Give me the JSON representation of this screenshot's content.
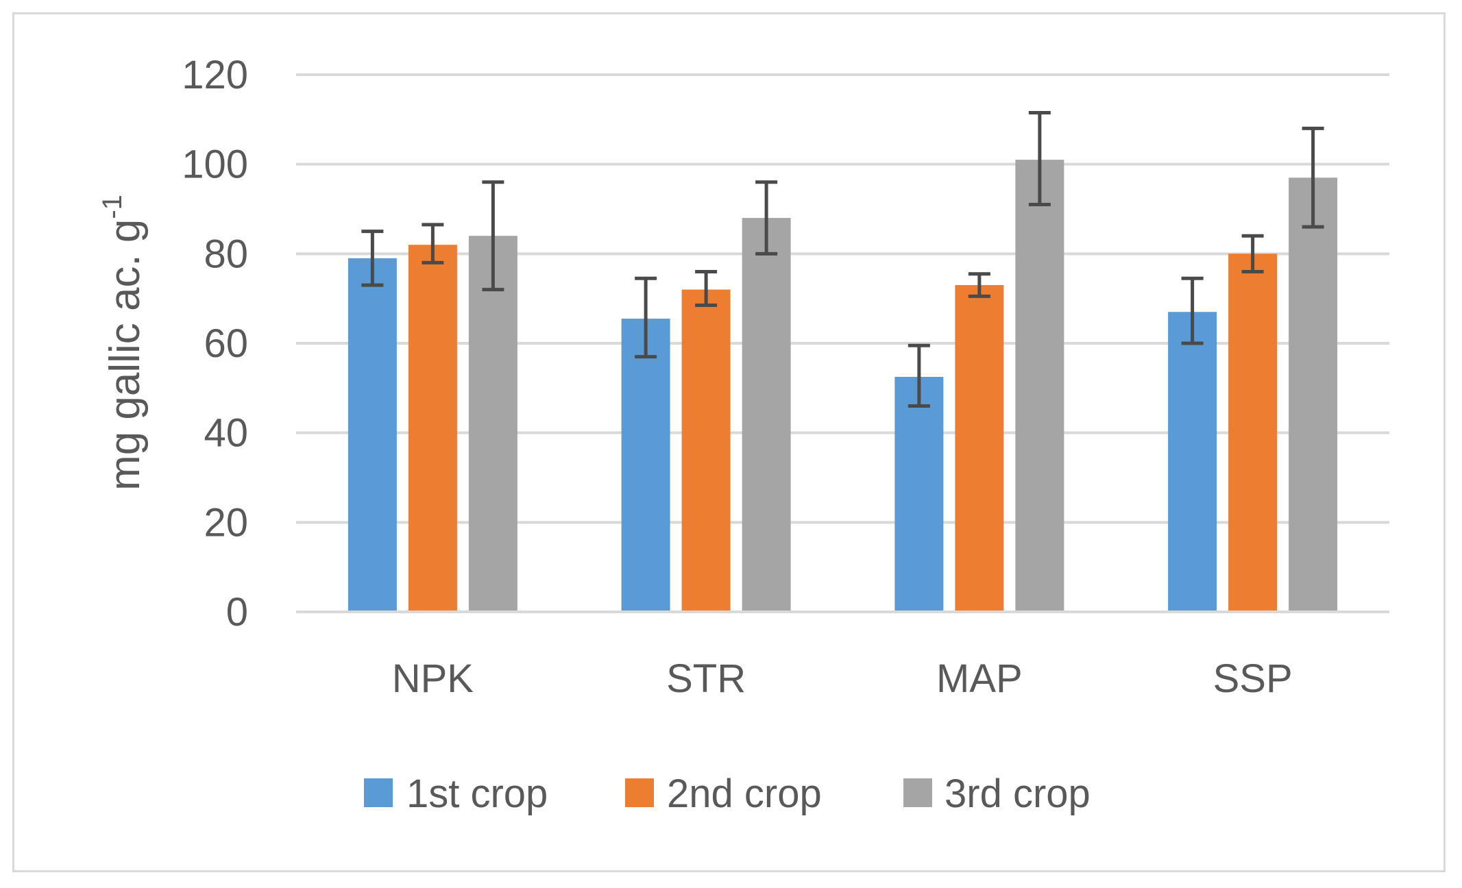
{
  "chart_data": {
    "type": "bar",
    "title": "",
    "xlabel": "",
    "ylabel": "mg gallic ac. g",
    "ylabel_superscript": "-1",
    "ylim": [
      0,
      120
    ],
    "yticks": [
      0,
      20,
      40,
      60,
      80,
      100,
      120
    ],
    "grid": true,
    "legend_position": "bottom",
    "categories": [
      "NPK",
      "STR",
      "MAP",
      "SSP"
    ],
    "series": [
      {
        "name": "1st crop",
        "color": "#5b9bd5",
        "values": [
          79,
          65.5,
          52.5,
          67
        ],
        "error_low": [
          73,
          57,
          46,
          60
        ],
        "error_high": [
          85,
          74.5,
          59.5,
          74.5
        ]
      },
      {
        "name": "2nd crop",
        "color": "#ed7d31",
        "values": [
          82,
          72,
          73,
          80
        ],
        "error_low": [
          78,
          68.5,
          70.5,
          76
        ],
        "error_high": [
          86.5,
          76,
          75.5,
          84
        ]
      },
      {
        "name": "3rd crop",
        "color": "#a5a5a5",
        "values": [
          84,
          88,
          101,
          97
        ],
        "error_low": [
          72,
          80,
          91,
          86
        ],
        "error_high": [
          96,
          96,
          111.5,
          108
        ]
      }
    ],
    "colors": {
      "grid": "#d9d9d9",
      "axis": "#d9d9d9",
      "errorbar": "#4a4a4a",
      "text": "#595959"
    }
  }
}
